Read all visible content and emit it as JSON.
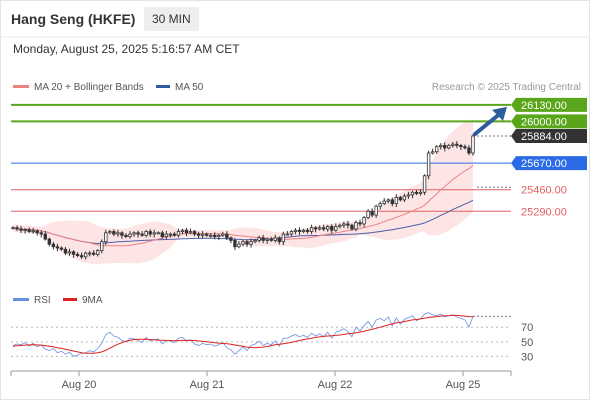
{
  "header": {
    "instrument": "Hang Seng (HKFE)",
    "timeframe": "30 MIN",
    "timestamp": "Monday, August 25, 2025 5:16:57 AM CET"
  },
  "colors": {
    "up_green": "#5aa61a",
    "pivot_blue": "#2b6be6",
    "support_red": "#e06060",
    "ma20": "#f08080",
    "ma50": "#4a5ea8",
    "band_fill": "#fde0e0",
    "price_dark": "#333333",
    "arrow": "#2e5d9e",
    "rsi": "#6b8fe0",
    "rsi_ma": "#e02020"
  },
  "chart_data": [
    {
      "type": "candlestick",
      "legend": [
        {
          "label": "MA 20 + Bollinger Bands",
          "color": "#f08080"
        },
        {
          "label": "MA 50",
          "color": "#2e5d9e"
        }
      ],
      "source": "Research © 2025 Trading Central",
      "x_ticks": [
        "Aug 20",
        "Aug 21",
        "Aug 22",
        "Aug 25"
      ],
      "ylim": [
        24700,
        26200
      ],
      "levels": [
        {
          "label": "26130.00",
          "value": 26130,
          "kind": "resistance"
        },
        {
          "label": "26000.00",
          "value": 26000,
          "kind": "resistance"
        },
        {
          "label": "25884.00",
          "value": 25884,
          "kind": "last"
        },
        {
          "label": "25670.00",
          "value": 25670,
          "kind": "pivot"
        },
        {
          "label": "25460.00",
          "value": 25460,
          "kind": "support"
        },
        {
          "label": "25290.00",
          "value": 25290,
          "kind": "support"
        }
      ],
      "last_price": 25884,
      "ma50_last": 25480,
      "close_series": [
        25160,
        25150,
        25140,
        25145,
        25130,
        25135,
        25120,
        25110,
        25070,
        25030,
        25010,
        25000,
        24990,
        24960,
        24970,
        24950,
        24940,
        24930,
        24960,
        24960,
        24950,
        24980,
        25050,
        25120,
        25130,
        25110,
        25120,
        25100,
        25090,
        25110,
        25120,
        25110,
        25100,
        25130,
        25110,
        25120,
        25120,
        25090,
        25110,
        25110,
        25100,
        25130,
        25140,
        25120,
        25130,
        25110,
        25100,
        25110,
        25100,
        25100,
        25090,
        25100,
        25110,
        25080,
        25060,
        25010,
        25030,
        25050,
        25030,
        25050,
        25060,
        25080,
        25060,
        25070,
        25060,
        25080,
        25050,
        25110,
        25110,
        25130,
        25140,
        25130,
        25140,
        25130,
        25160,
        25150,
        25160,
        25150,
        25170,
        25140,
        25170,
        25180,
        25190,
        25180,
        25150,
        25200,
        25190,
        25240,
        25290,
        25260,
        25330,
        25350,
        25370,
        25380,
        25350,
        25400,
        25380,
        25410,
        25420,
        25440,
        25430,
        25440,
        25570,
        25750,
        25760,
        25800,
        25810,
        25790,
        25810,
        25820,
        25810,
        25800,
        25790,
        25750,
        25884
      ]
    },
    {
      "type": "line",
      "legend": [
        {
          "label": "RSI",
          "color": "#6b8fe0"
        },
        {
          "label": "9MA",
          "color": "#e02020"
        }
      ],
      "y_ticks": [
        "70",
        "50",
        "30"
      ],
      "ylim": [
        10,
        95
      ],
      "rsi_series": [
        45,
        47,
        46,
        49,
        44,
        48,
        43,
        46,
        40,
        38,
        41,
        35,
        37,
        33,
        36,
        30,
        32,
        34,
        35,
        38,
        36,
        41,
        48,
        60,
        63,
        58,
        56,
        52,
        50,
        55,
        54,
        52,
        49,
        56,
        51,
        53,
        54,
        47,
        52,
        51,
        49,
        55,
        56,
        51,
        53,
        47,
        45,
        48,
        46,
        47,
        44,
        46,
        49,
        42,
        39,
        33,
        38,
        43,
        38,
        45,
        47,
        51,
        45,
        48,
        46,
        51,
        44,
        55,
        55,
        58,
        60,
        57,
        59,
        56,
        62,
        58,
        61,
        57,
        63,
        55,
        63,
        65,
        68,
        64,
        57,
        70,
        65,
        72,
        78,
        70,
        80,
        82,
        79,
        84,
        72,
        83,
        74,
        81,
        83,
        86,
        79,
        82,
        88,
        90,
        87,
        86,
        88,
        84,
        86,
        87,
        84,
        82,
        80,
        70,
        85
      ],
      "ma_series": [
        44,
        44.5,
        45,
        45.5,
        45.8,
        46,
        45.8,
        45.5,
        44.8,
        44,
        43.2,
        42,
        41,
        39.8,
        38.6,
        37.4,
        36.2,
        35,
        34.4,
        34.2,
        34.4,
        35,
        36.2,
        38.4,
        41.2,
        44,
        46.8,
        49,
        50.8,
        52,
        53.2,
        53.6,
        53.6,
        53.4,
        53,
        52.6,
        52.4,
        52.2,
        52,
        51.8,
        51.6,
        51.8,
        52,
        52,
        52,
        51.8,
        51.2,
        50.6,
        50,
        49.4,
        48.8,
        48.2,
        47.8,
        47.4,
        46.6,
        45.6,
        44.6,
        43.8,
        42.8,
        42.2,
        42,
        42.4,
        42.8,
        43.6,
        44.8,
        46,
        46.6,
        47.4,
        48.2,
        49.2,
        50.6,
        51.8,
        53,
        54,
        55,
        56,
        56.8,
        57.4,
        58,
        58.4,
        58.8,
        59.4,
        60.2,
        61,
        61.6,
        62.4,
        63.4,
        64.6,
        66,
        67.2,
        68.6,
        70,
        71.6,
        73.2,
        74.6,
        76,
        76.8,
        77.8,
        78.8,
        80,
        80.6,
        81.4,
        82.4,
        83.4,
        84,
        84.6,
        85.2,
        85.8,
        86,
        86.2,
        86.2,
        85.8,
        85.2,
        84.6,
        84.4
      ]
    }
  ]
}
